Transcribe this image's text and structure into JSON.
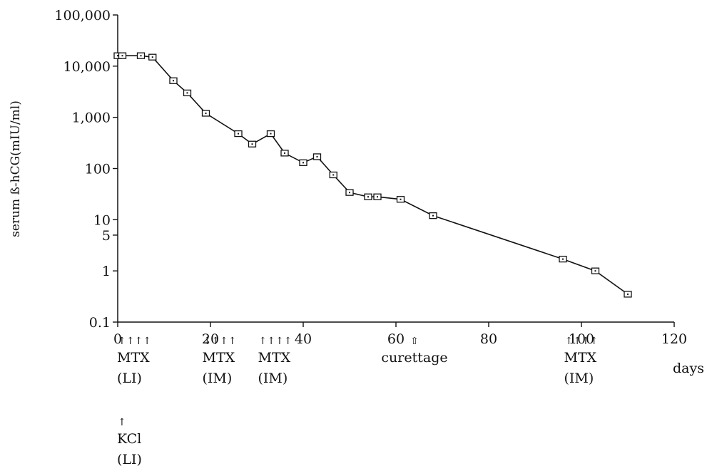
{
  "chart_data": {
    "type": "line",
    "title": "",
    "xlabel": "days",
    "ylabel": "serum ß-hCG(mIU/ml)",
    "xlim": [
      0,
      120
    ],
    "ylim": [
      0.1,
      100000
    ],
    "yscale": "log",
    "grid": false,
    "x_ticks": [
      {
        "value": 0,
        "label": "0"
      },
      {
        "value": 20,
        "label": "20"
      },
      {
        "value": 40,
        "label": "40"
      },
      {
        "value": 60,
        "label": "60"
      },
      {
        "value": 80,
        "label": "80"
      },
      {
        "value": 100,
        "label": "100"
      },
      {
        "value": 120,
        "label": "120"
      }
    ],
    "y_ticks": [
      {
        "value": 100000,
        "label": "100,000"
      },
      {
        "value": 10000,
        "label": "10,000"
      },
      {
        "value": 1000,
        "label": "1,000"
      },
      {
        "value": 100,
        "label": "100"
      },
      {
        "value": 10,
        "label": "10"
      },
      {
        "value": 5,
        "label": "5"
      },
      {
        "value": 1,
        "label": "1"
      },
      {
        "value": 0.1,
        "label": "0.1"
      }
    ],
    "series": [
      {
        "x": [
          0,
          1,
          5,
          7.5,
          12,
          15,
          19,
          26,
          29,
          33,
          36,
          40,
          43,
          46.5,
          50,
          54,
          56,
          61,
          68,
          96,
          103,
          110
        ],
        "y": [
          16000,
          16000,
          16000,
          15000,
          5200,
          3000,
          1200,
          480,
          300,
          480,
          200,
          130,
          170,
          75,
          34,
          28,
          28,
          25,
          12,
          1.7,
          1.0,
          0.35
        ]
      }
    ],
    "annotations": [
      {
        "x": 0,
        "arrow": "↑↑↑↑",
        "label": "MTX",
        "sublabel": "(LI)"
      },
      {
        "x": 19,
        "arrow": "↑↑↑↑",
        "label": "MTX",
        "sublabel": "(IM)"
      },
      {
        "x": 31,
        "arrow": "↑↑↑↑",
        "label": "MTX",
        "sublabel": "(IM)"
      },
      {
        "x": 64,
        "arrow": "⇧",
        "label": "curettage",
        "sublabel": ""
      },
      {
        "x": 97,
        "arrow": "↑↑↑↑",
        "label": "MTX",
        "sublabel": "(IM)"
      },
      {
        "x": 0,
        "arrow": "↑",
        "label": "KCl",
        "sublabel": "(LI)"
      }
    ]
  }
}
